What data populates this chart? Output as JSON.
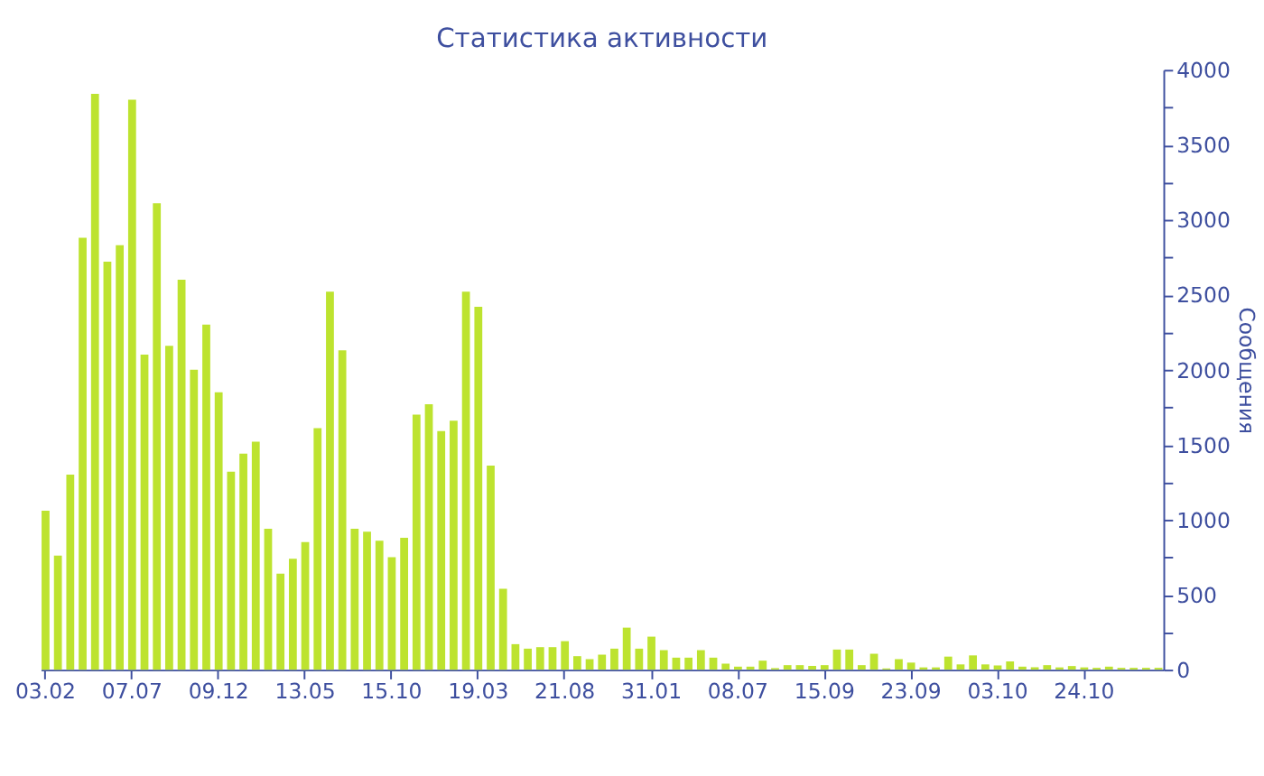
{
  "chart_data": {
    "type": "bar",
    "title": "Статистика активности",
    "ylabel": "Сообщения",
    "categories": [
      "03.02",
      null,
      null,
      null,
      null,
      null,
      null,
      "07.07",
      null,
      null,
      null,
      null,
      null,
      null,
      "09.12",
      null,
      null,
      null,
      null,
      null,
      null,
      "13.05",
      null,
      null,
      null,
      null,
      null,
      null,
      "15.10",
      null,
      null,
      null,
      null,
      null,
      null,
      "19.03",
      null,
      null,
      null,
      null,
      null,
      null,
      "21.08",
      null,
      null,
      null,
      null,
      null,
      null,
      "31.01",
      null,
      null,
      null,
      null,
      null,
      null,
      "08.07",
      null,
      null,
      null,
      null,
      null,
      null,
      "15.09",
      null,
      null,
      null,
      null,
      null,
      null,
      "23.09",
      null,
      null,
      null,
      null,
      null,
      null,
      "03.10",
      null,
      null,
      null,
      null,
      null,
      null,
      "24.10",
      null,
      null,
      null,
      null,
      null,
      null
    ],
    "values": [
      1060,
      760,
      1300,
      2880,
      3840,
      2720,
      2830,
      3800,
      2100,
      3110,
      2160,
      2600,
      2000,
      2300,
      1850,
      1320,
      1440,
      1520,
      940,
      640,
      740,
      850,
      1610,
      2520,
      2130,
      940,
      920,
      860,
      750,
      880,
      1700,
      1770,
      1590,
      1660,
      2520,
      2420,
      1360,
      540,
      170,
      140,
      150,
      150,
      190,
      90,
      70,
      100,
      140,
      280,
      140,
      220,
      130,
      80,
      80,
      130,
      80,
      40,
      20,
      20,
      60,
      10,
      30,
      30,
      25,
      30,
      134,
      134,
      30,
      106,
      8,
      70,
      47,
      15,
      15,
      87,
      35,
      95,
      35,
      28,
      55,
      20,
      16,
      30,
      15,
      24,
      15,
      12,
      20,
      12,
      12,
      12,
      12
    ],
    "color": "#bde32f",
    "ylim": [
      0,
      4000
    ],
    "yticks": [
      0,
      {
        "value": 250,
        "label": null
      },
      500,
      {
        "value": 750,
        "label": null
      },
      1000,
      {
        "value": 1250,
        "label": null
      },
      1500,
      {
        "value": 1750,
        "label": null
      },
      2000,
      {
        "value": 2250,
        "label": null
      },
      2500,
      {
        "value": 2750,
        "label": null
      },
      3000,
      {
        "value": 3250,
        "label": null
      },
      3500,
      {
        "value": 3750,
        "label": null
      },
      4000
    ],
    "grid": false
  }
}
